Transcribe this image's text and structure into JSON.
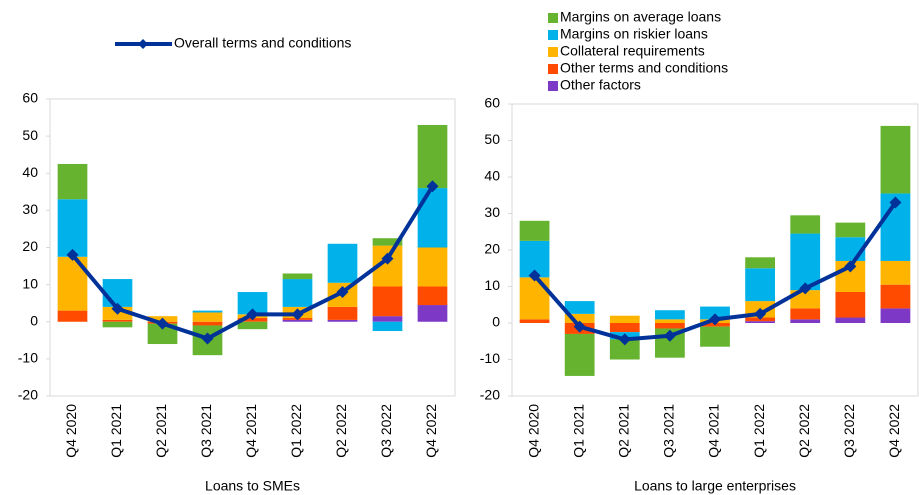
{
  "chart_data": [
    {
      "type": "bar",
      "x_label": "Loans to SMEs",
      "categories": [
        "Q4 2020",
        "Q1 2021",
        "Q2 2021",
        "Q3 2021",
        "Q4 2021",
        "Q1 2022",
        "Q2 2022",
        "Q3 2022",
        "Q4 2022"
      ],
      "ylim": [
        -20,
        60
      ],
      "yticks": [
        -20,
        -10,
        0,
        10,
        20,
        30,
        40,
        50,
        60
      ],
      "series": [
        {
          "color": "#7d39c6",
          "values": [
            0,
            0,
            0,
            0,
            0,
            0.5,
            0.5,
            1.5,
            4.5
          ]
        },
        {
          "color": "#ff4b00",
          "values": [
            3,
            0.5,
            -0.5,
            -1,
            1,
            0.5,
            3.5,
            8,
            5
          ]
        },
        {
          "color": "#ffb400",
          "values": [
            14.5,
            3.5,
            1.5,
            2.5,
            1,
            3,
            6.5,
            11,
            10.5
          ]
        },
        {
          "color": "#00b1ea",
          "values": [
            15.5,
            7.5,
            0,
            0.5,
            6,
            7.5,
            10.5,
            -2.5,
            16
          ]
        },
        {
          "color": "#65b32e",
          "values": [
            9.5,
            -1.5,
            -5.5,
            -8,
            -2,
            1.5,
            0,
            2,
            17
          ]
        },
        {
          "name": "Overall terms and conditions",
          "type": "line",
          "color": "#003299",
          "values": [
            18,
            3.5,
            -0.5,
            -4.5,
            2,
            2,
            8,
            17,
            36.5
          ]
        }
      ]
    },
    {
      "type": "bar",
      "x_label": "Loans to large enterprises",
      "categories": [
        "Q4 2020",
        "Q1 2021",
        "Q2 2021",
        "Q3 2021",
        "Q4 2021",
        "Q1 2022",
        "Q2 2022",
        "Q3 2022",
        "Q4 2022"
      ],
      "ylim": [
        -20,
        60
      ],
      "yticks": [
        -20,
        -10,
        0,
        10,
        20,
        30,
        40,
        50,
        60
      ],
      "series": [
        {
          "name": "Other factors",
          "color": "#7d39c6",
          "values": [
            0,
            0,
            0,
            0,
            0,
            0.5,
            1,
            1.5,
            4
          ]
        },
        {
          "name": "Other terms and conditions",
          "color": "#ff4b00",
          "values": [
            1,
            -3,
            -2.5,
            -1.5,
            -1,
            1,
            3,
            7,
            6.5
          ]
        },
        {
          "name": "Collateral requirements",
          "color": "#ffb400",
          "values": [
            11.5,
            2.5,
            2,
            1,
            1,
            4.5,
            5,
            8.5,
            6.5
          ]
        },
        {
          "name": "Margins on riskier loans",
          "color": "#00b1ea",
          "values": [
            10,
            3.5,
            -2,
            2.5,
            3.5,
            9,
            15.5,
            6.5,
            18.5
          ]
        },
        {
          "name": "Margins on average loans",
          "color": "#65b32e",
          "values": [
            5.5,
            -11.5,
            -5.5,
            -8,
            -5.5,
            3,
            5,
            4,
            18.5
          ]
        },
        {
          "type": "line",
          "color": "#003299",
          "values": [
            13,
            -1,
            -4.5,
            -3.5,
            1,
            2.5,
            9.5,
            15.5,
            33
          ]
        }
      ]
    }
  ]
}
